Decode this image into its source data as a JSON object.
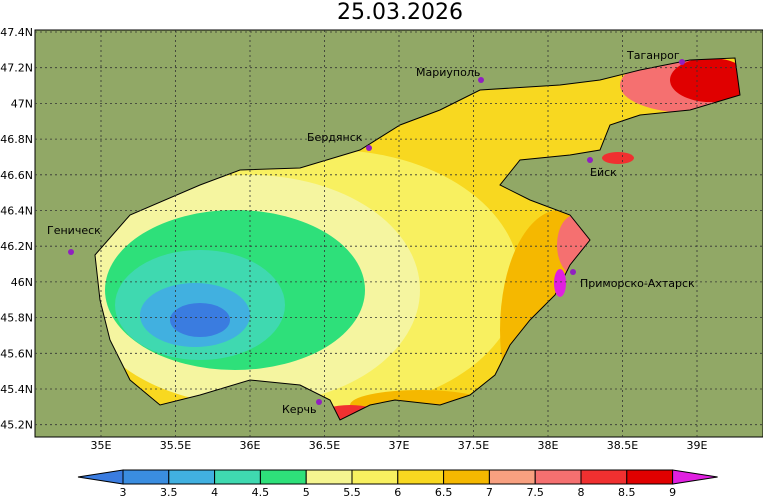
{
  "title": "25.03.2026",
  "lon_ticks": [
    "35E",
    "35.5E",
    "36E",
    "36.5E",
    "37E",
    "37.5E",
    "38E",
    "38.5E",
    "39E"
  ],
  "lat_ticks": [
    "47.4N",
    "47.2N",
    "47N",
    "46.8N",
    "46.6N",
    "46.4N",
    "46.2N",
    "46N",
    "45.8N",
    "45.6N",
    "45.4N",
    "45.2N"
  ],
  "cities": [
    {
      "name": "Геническ"
    },
    {
      "name": "Бердянск"
    },
    {
      "name": "Мариуполь"
    },
    {
      "name": "Таганрог"
    },
    {
      "name": "Ейск"
    },
    {
      "name": "Приморско-Ахтарск"
    },
    {
      "name": "Керчь"
    }
  ],
  "colorbar": {
    "labels": [
      3,
      3.5,
      4,
      4.5,
      5,
      5.5,
      6,
      6.5,
      7,
      7.5,
      8,
      8.5,
      9
    ]
  }
}
